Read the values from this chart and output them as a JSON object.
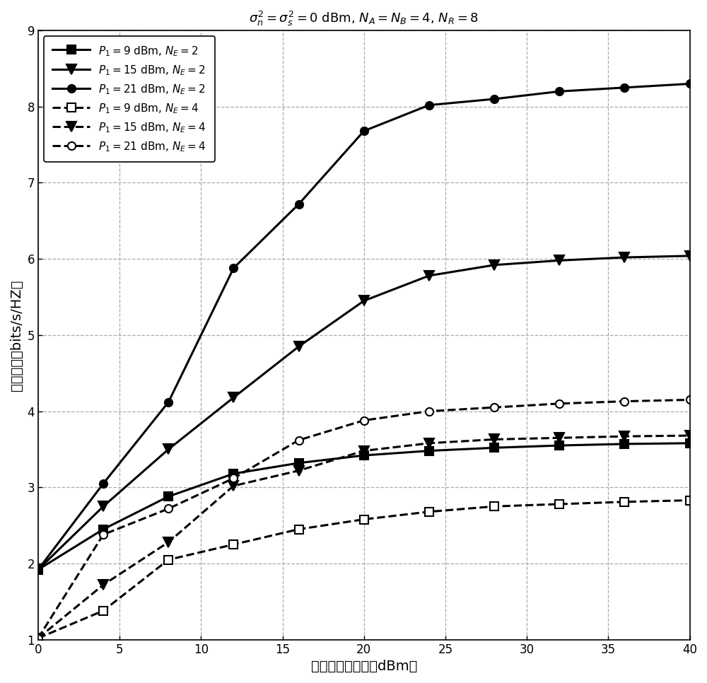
{
  "title": "$\\sigma_n^2 = \\sigma_s^2 = 0$ dBm, $N_A = N_B = 4$, $N_R = 8$",
  "xlabel": "中继节点总功率（dBm）",
  "ylabel": "安全速率（bits/s/HZ）",
  "xlim": [
    0,
    40
  ],
  "ylim": [
    1,
    9
  ],
  "xticks": [
    0,
    5,
    10,
    15,
    20,
    25,
    30,
    35,
    40
  ],
  "yticks": [
    1,
    2,
    3,
    4,
    5,
    6,
    7,
    8,
    9
  ],
  "x": [
    0,
    4,
    8,
    12,
    16,
    20,
    24,
    28,
    32,
    36,
    40
  ],
  "series": [
    {
      "label": "$P_1 = 9$ dBm, $N_E = 2$",
      "y": [
        1.92,
        2.45,
        2.88,
        3.18,
        3.32,
        3.42,
        3.48,
        3.52,
        3.55,
        3.57,
        3.58
      ],
      "linestyle": "-",
      "marker": "s",
      "color": "black",
      "linewidth": 2.2,
      "markersize": 8,
      "mfc": "black"
    },
    {
      "label": "$P_1 = 15$ dBm, $N_E = 2$",
      "y": [
        1.92,
        2.75,
        3.5,
        4.18,
        4.85,
        5.45,
        5.78,
        5.92,
        5.98,
        6.02,
        6.04
      ],
      "linestyle": "-",
      "marker": "v",
      "color": "black",
      "linewidth": 2.2,
      "markersize": 10,
      "mfc": "black"
    },
    {
      "label": "$P_1 = 21$ dBm, $N_E = 2$",
      "y": [
        1.92,
        3.05,
        4.12,
        5.88,
        6.72,
        7.68,
        8.02,
        8.1,
        8.2,
        8.25,
        8.3
      ],
      "linestyle": "-",
      "marker": "o",
      "color": "black",
      "linewidth": 2.2,
      "markersize": 8,
      "mfc": "black"
    },
    {
      "label": "$P_1 = 9$ dBm, $N_E = 4$",
      "y": [
        1.02,
        1.38,
        2.05,
        2.25,
        2.45,
        2.58,
        2.68,
        2.75,
        2.78,
        2.81,
        2.83
      ],
      "linestyle": "--",
      "marker": "s",
      "color": "black",
      "linewidth": 2.2,
      "markersize": 8,
      "mfc": "white"
    },
    {
      "label": "$P_1 = 15$ dBm, $N_E = 4$",
      "y": [
        1.02,
        1.72,
        2.28,
        3.02,
        3.22,
        3.48,
        3.58,
        3.63,
        3.65,
        3.67,
        3.68
      ],
      "linestyle": "--",
      "marker": "v",
      "color": "black",
      "linewidth": 2.2,
      "markersize": 10,
      "mfc": "black"
    },
    {
      "label": "$P_1 = 21$ dBm, $N_E = 4$",
      "y": [
        1.02,
        2.38,
        2.72,
        3.12,
        3.62,
        3.88,
        4.0,
        4.05,
        4.1,
        4.13,
        4.15
      ],
      "linestyle": "--",
      "marker": "o",
      "color": "black",
      "linewidth": 2.2,
      "markersize": 8,
      "mfc": "white"
    }
  ]
}
